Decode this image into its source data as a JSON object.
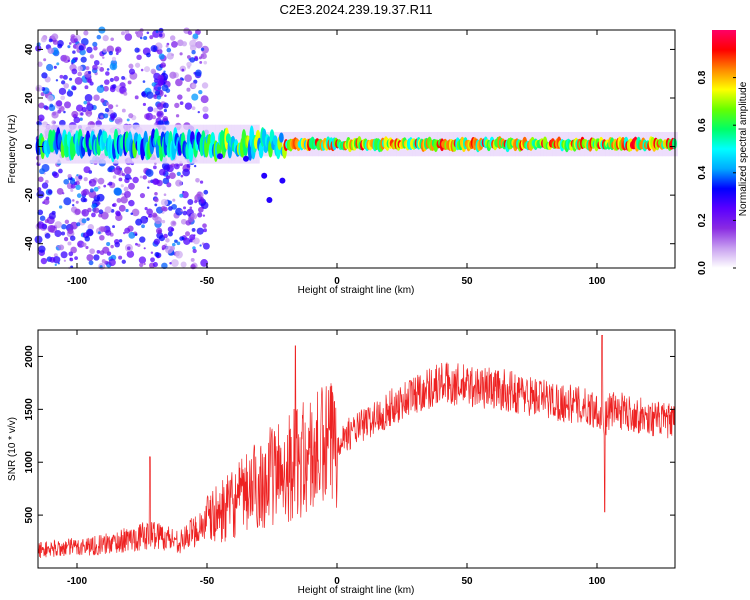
{
  "page_title": "C2E3.2024.239.19.37.R11",
  "chart_data": [
    {
      "type": "heatmap",
      "xlabel": "Height of straight line (km)",
      "ylabel": "Frequency (Hz)",
      "xlim": [
        -115,
        130
      ],
      "ylim": [
        -50,
        48
      ],
      "xticks": [
        -100,
        -50,
        0,
        50,
        100
      ],
      "yticks": [
        -40,
        -20,
        0,
        20,
        40
      ],
      "ridge_frequency": 1,
      "colorbar": {
        "label": "Normalized spectral amplitude",
        "ticks": [
          0.0,
          0.2,
          0.4,
          0.6,
          0.8
        ],
        "range": [
          0,
          1
        ],
        "colors": [
          "#ffffff",
          "#c8a0f0",
          "#8a2be2",
          "#5a00ff",
          "#0000ff",
          "#00aaff",
          "#00ffff",
          "#00ff66",
          "#66ff00",
          "#ffff00",
          "#ff8800",
          "#ff0000",
          "#ff0066"
        ]
      }
    },
    {
      "type": "line",
      "xlabel": "Height of straight line (km)",
      "ylabel": "SNR (10 * v/v)",
      "xlim": [
        -115,
        130
      ],
      "ylim": [
        0,
        2250
      ],
      "xticks": [
        -100,
        -50,
        0,
        50,
        100
      ],
      "yticks": [
        500,
        1000,
        1500,
        2000
      ],
      "color": "#ee2222",
      "envelope": {
        "x": [
          -115,
          -100,
          -90,
          -80,
          -75,
          -70,
          -60,
          -50,
          -40,
          -30,
          -20,
          -15,
          -10,
          0,
          10,
          20,
          30,
          40,
          50,
          60,
          70,
          80,
          90,
          100,
          103,
          105,
          110,
          120,
          130
        ],
        "y": [
          170,
          200,
          220,
          270,
          300,
          320,
          250,
          450,
          600,
          800,
          950,
          1000,
          1050,
          1200,
          1350,
          1500,
          1650,
          1750,
          1720,
          1700,
          1650,
          1600,
          1550,
          1500,
          1400,
          1500,
          1480,
          1420,
          1380
        ]
      },
      "spikes": [
        {
          "x": -72,
          "y": 1050
        },
        {
          "x": -16,
          "y": 2100
        },
        {
          "x": 102,
          "y": 2200
        },
        {
          "x": 103,
          "y": 530
        }
      ]
    }
  ]
}
